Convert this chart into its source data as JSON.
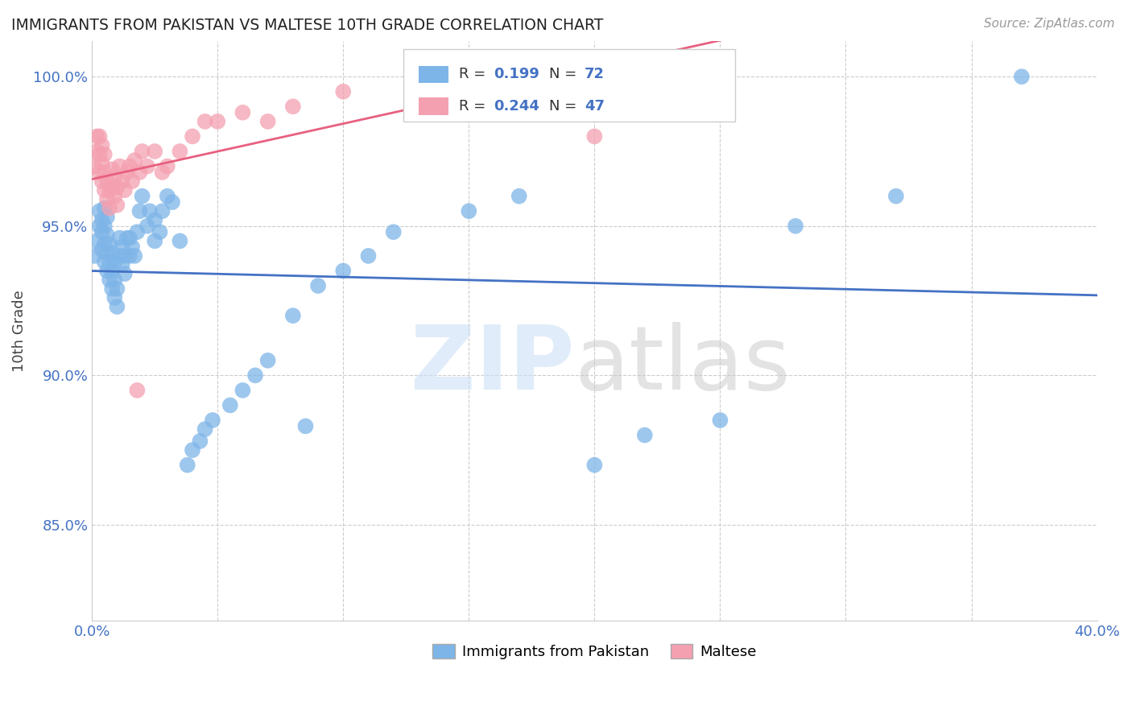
{
  "title": "IMMIGRANTS FROM PAKISTAN VS MALTESE 10TH GRADE CORRELATION CHART",
  "source": "Source: ZipAtlas.com",
  "ylabel": "10th Grade",
  "xlim": [
    0.0,
    0.4
  ],
  "ylim": [
    0.818,
    1.012
  ],
  "xticks": [
    0.0,
    0.05,
    0.1,
    0.15,
    0.2,
    0.25,
    0.3,
    0.35,
    0.4
  ],
  "xticklabels": [
    "0.0%",
    "",
    "",
    "",
    "",
    "",
    "",
    "",
    "40.0%"
  ],
  "yticks": [
    0.85,
    0.9,
    0.95,
    1.0
  ],
  "yticklabels": [
    "85.0%",
    "90.0%",
    "95.0%",
    "100.0%"
  ],
  "blue_color": "#7EB5E8",
  "pink_color": "#F4A0B0",
  "blue_line_color": "#4472C4",
  "pink_line_color": "#E86080",
  "legend_R_blue": "0.199",
  "legend_N_blue": "72",
  "legend_R_pink": "0.244",
  "legend_N_pink": "47",
  "legend_label_blue": "Immigrants from Pakistan",
  "legend_label_pink": "Maltese",
  "blue_x": [
    0.001,
    0.002,
    0.003,
    0.003,
    0.004,
    0.004,
    0.004,
    0.005,
    0.005,
    0.005,
    0.005,
    0.006,
    0.006,
    0.006,
    0.006,
    0.007,
    0.007,
    0.007,
    0.008,
    0.008,
    0.008,
    0.009,
    0.009,
    0.009,
    0.01,
    0.01,
    0.011,
    0.011,
    0.012,
    0.012,
    0.013,
    0.013,
    0.014,
    0.015,
    0.015,
    0.016,
    0.017,
    0.018,
    0.019,
    0.02,
    0.022,
    0.023,
    0.025,
    0.025,
    0.027,
    0.028,
    0.03,
    0.032,
    0.035,
    0.038,
    0.04,
    0.043,
    0.045,
    0.048,
    0.055,
    0.06,
    0.065,
    0.07,
    0.08,
    0.085,
    0.09,
    0.1,
    0.11,
    0.12,
    0.15,
    0.17,
    0.2,
    0.22,
    0.25,
    0.28,
    0.32,
    0.37
  ],
  "blue_y": [
    0.94,
    0.945,
    0.95,
    0.955,
    0.942,
    0.948,
    0.952,
    0.938,
    0.944,
    0.95,
    0.956,
    0.935,
    0.941,
    0.947,
    0.953,
    0.932,
    0.938,
    0.944,
    0.929,
    0.935,
    0.941,
    0.926,
    0.932,
    0.938,
    0.923,
    0.929,
    0.94,
    0.946,
    0.937,
    0.943,
    0.934,
    0.94,
    0.946,
    0.94,
    0.946,
    0.943,
    0.94,
    0.948,
    0.955,
    0.96,
    0.95,
    0.955,
    0.945,
    0.952,
    0.948,
    0.955,
    0.96,
    0.958,
    0.945,
    0.87,
    0.875,
    0.878,
    0.882,
    0.885,
    0.89,
    0.895,
    0.9,
    0.905,
    0.92,
    0.883,
    0.93,
    0.935,
    0.94,
    0.948,
    0.955,
    0.96,
    0.87,
    0.88,
    0.885,
    0.95,
    0.96,
    1.0
  ],
  "pink_x": [
    0.001,
    0.002,
    0.002,
    0.003,
    0.003,
    0.003,
    0.004,
    0.004,
    0.004,
    0.005,
    0.005,
    0.005,
    0.006,
    0.006,
    0.007,
    0.007,
    0.008,
    0.008,
    0.009,
    0.009,
    0.01,
    0.01,
    0.011,
    0.012,
    0.013,
    0.014,
    0.015,
    0.016,
    0.017,
    0.018,
    0.019,
    0.02,
    0.022,
    0.025,
    0.028,
    0.03,
    0.035,
    0.04,
    0.045,
    0.05,
    0.06,
    0.07,
    0.08,
    0.1,
    0.13,
    0.16,
    0.2
  ],
  "pink_y": [
    0.97,
    0.975,
    0.98,
    0.968,
    0.974,
    0.98,
    0.965,
    0.971,
    0.977,
    0.962,
    0.968,
    0.974,
    0.959,
    0.965,
    0.956,
    0.962,
    0.963,
    0.969,
    0.96,
    0.966,
    0.957,
    0.963,
    0.97,
    0.965,
    0.962,
    0.968,
    0.97,
    0.965,
    0.972,
    0.895,
    0.968,
    0.975,
    0.97,
    0.975,
    0.968,
    0.97,
    0.975,
    0.98,
    0.985,
    0.985,
    0.988,
    0.985,
    0.99,
    0.995,
    0.998,
    1.0,
    0.98
  ]
}
